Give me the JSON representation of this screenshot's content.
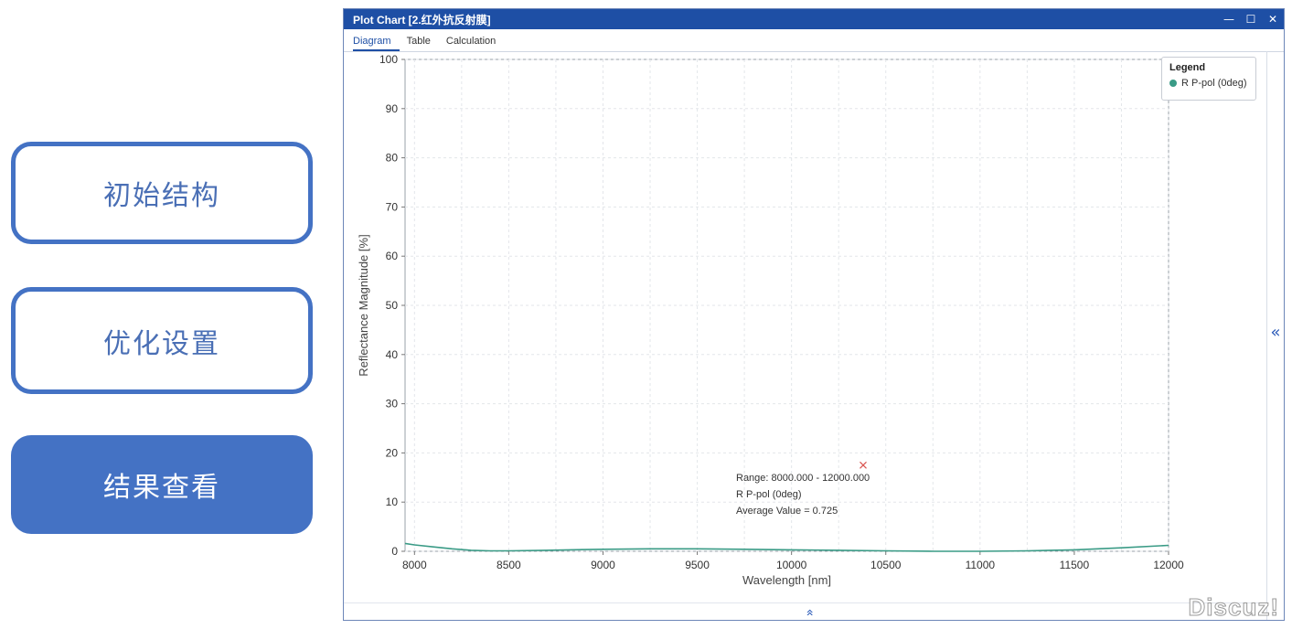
{
  "nav": {
    "items": [
      {
        "label": "初始结构",
        "active": false
      },
      {
        "label": "优化设置",
        "active": false
      },
      {
        "label": "结果查看",
        "active": true
      }
    ]
  },
  "window": {
    "title": "Plot Chart [2.红外抗反射膜]",
    "controls": {
      "minimize": "—",
      "maximize": "☐",
      "close": "✕"
    },
    "tabs": [
      "Diagram",
      "Table",
      "Calculation"
    ],
    "active_tab": "Diagram"
  },
  "legend": {
    "title": "Legend",
    "entries": [
      {
        "label": "R P-pol (0deg)",
        "color": "#3a9b86"
      }
    ]
  },
  "annotation": {
    "range": "Range: 8000.000 - 12000.000",
    "series": "R P-pol (0deg)",
    "average": "Average Value = 0.725"
  },
  "watermark": "Discuz!",
  "colors": {
    "accent": "#4472c4",
    "titlebar": "#1e4fa5",
    "series": "#3a9b86",
    "marker": "#d9534f"
  },
  "icons": {
    "collapse_right": "double-chevron-left-icon",
    "collapse_bottom": "double-chevron-up-icon"
  },
  "chart_data": {
    "type": "line",
    "xlabel": "Wavelength [nm]",
    "ylabel": "Reflectance Magnitude [%]",
    "xlim": [
      7950,
      12000
    ],
    "ylim": [
      0,
      100
    ],
    "xticks": [
      8000,
      8500,
      9000,
      9500,
      10000,
      10500,
      11000,
      11500,
      12000
    ],
    "yticks": [
      0,
      10,
      20,
      30,
      40,
      50,
      60,
      70,
      80,
      90,
      100
    ],
    "grid": true,
    "legend_position": "top-right",
    "series": [
      {
        "name": "R P-pol (0deg)",
        "x": [
          7950,
          8000,
          8100,
          8200,
          8300,
          8400,
          8500,
          8700,
          9000,
          9250,
          9500,
          9750,
          10000,
          10250,
          10500,
          10750,
          11000,
          11250,
          11500,
          11750,
          12000
        ],
        "values": [
          1.6,
          1.3,
          0.9,
          0.5,
          0.2,
          0.1,
          0.1,
          0.2,
          0.4,
          0.5,
          0.5,
          0.4,
          0.3,
          0.2,
          0.1,
          0.0,
          0.0,
          0.1,
          0.3,
          0.7,
          1.2
        ]
      }
    ],
    "marker": {
      "x": 10380,
      "y": 17.5
    }
  }
}
